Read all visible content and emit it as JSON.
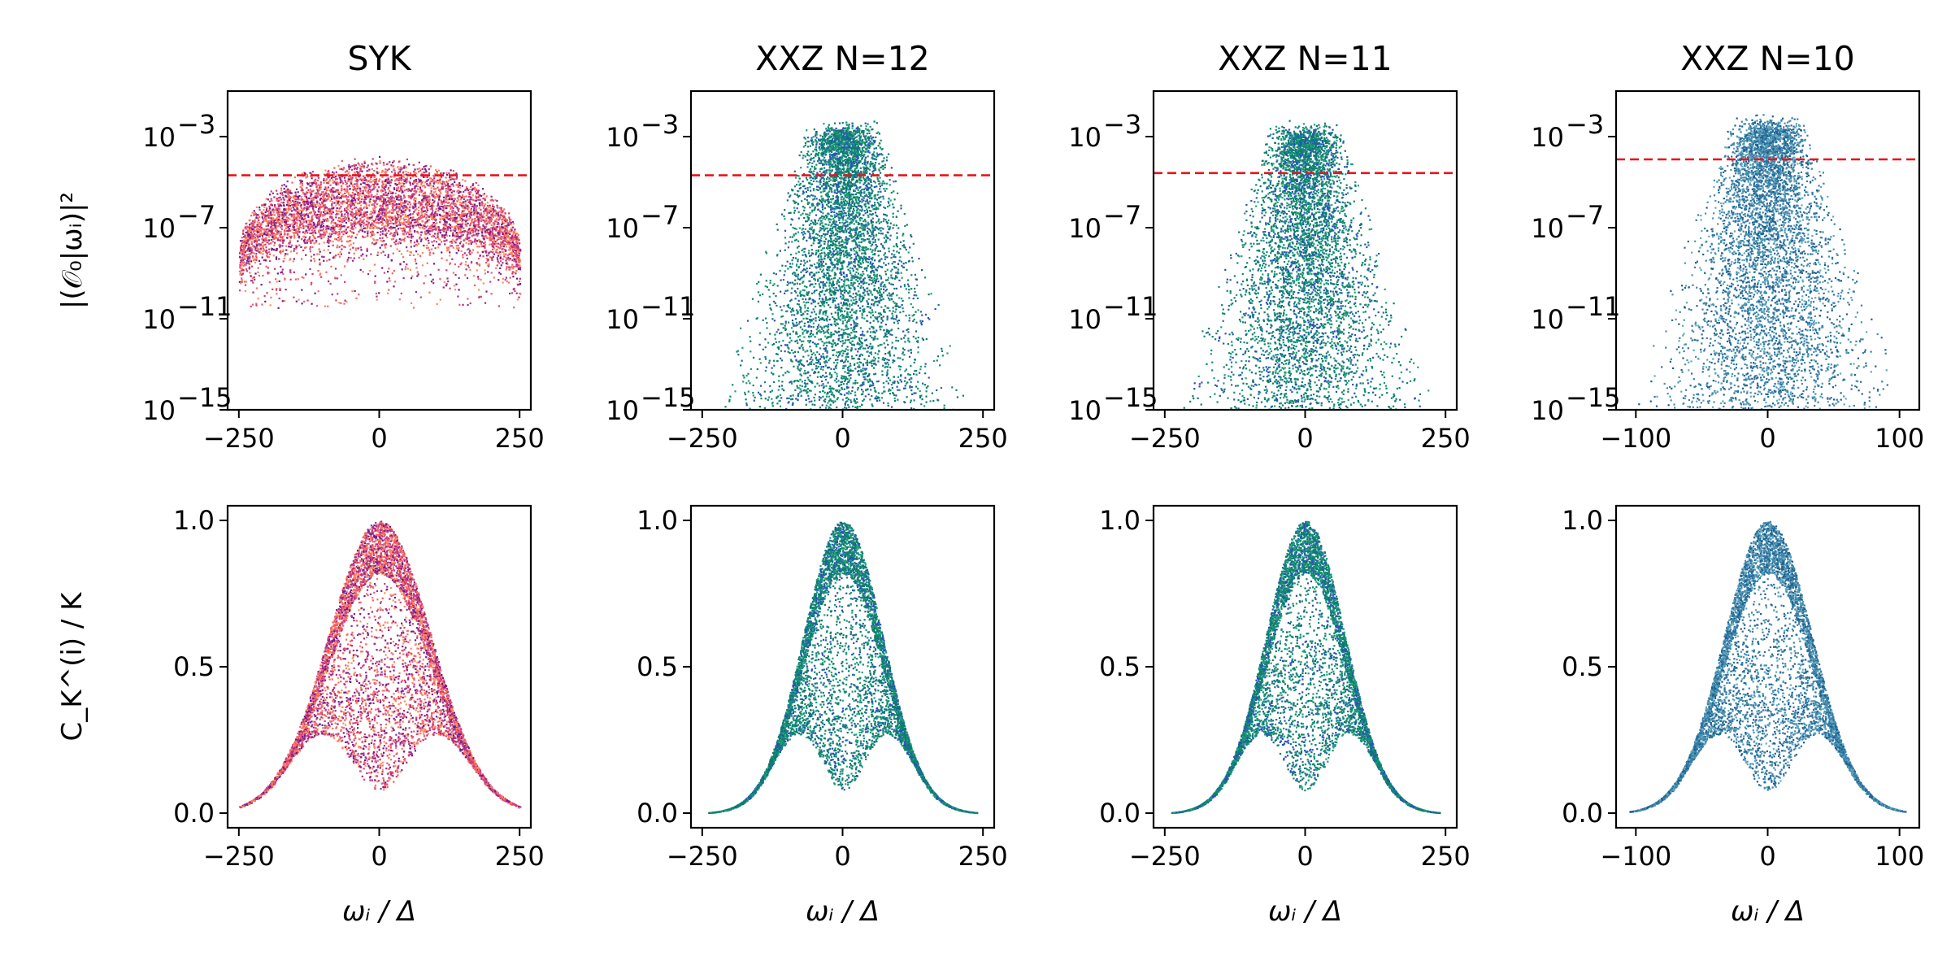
{
  "figure": {
    "background": "#ffffff",
    "colormap_names": [
      "magma-pink",
      "green-blue",
      "green-blue",
      "blue-teal"
    ]
  },
  "chart_data": [
    {
      "type": "scatter",
      "title": "SYK",
      "row": "top",
      "ylabel": "|(𝒪₀|ωᵢ)|²",
      "yscale": "log",
      "ylim_exp": [
        -15,
        -1
      ],
      "xlim": [
        -270,
        270
      ],
      "xticks": [
        -250,
        0,
        250
      ],
      "xtick_labels": [
        "−250",
        "0",
        "250"
      ],
      "ytick_exps": [
        -3,
        -7,
        -11,
        -15
      ],
      "ytick_labels": [
        "10",
        "10",
        "10",
        "10"
      ],
      "ytick_sups": [
        "−3",
        "−7",
        "−11",
        "−15"
      ],
      "reference_line": {
        "y_exp": -4.7,
        "color": "#e8141c",
        "style": "dashed"
      },
      "cloud": {
        "x_extent": [
          -250,
          250
        ],
        "y_top_exp": -3.8,
        "y_bottom_exp": -7.9,
        "tail_exp": -10.5,
        "shape": "dome"
      },
      "colors": [
        "#ff8c5a",
        "#ff7060",
        "#f25a6b",
        "#d43d78",
        "#a02c8a",
        "#6d1c8f"
      ]
    },
    {
      "type": "scatter",
      "title": "XXZ N=12",
      "row": "top",
      "ylabel": "",
      "yscale": "log",
      "ylim_exp": [
        -15,
        -1
      ],
      "xlim": [
        -270,
        270
      ],
      "xticks": [
        -250,
        0,
        250
      ],
      "xtick_labels": [
        "−250",
        "0",
        "250"
      ],
      "ytick_exps": [
        -3,
        -7,
        -11,
        -15
      ],
      "ytick_labels": [
        "10",
        "10",
        "10",
        "10"
      ],
      "ytick_sups": [
        "−3",
        "−7",
        "−11",
        "−15"
      ],
      "reference_line": {
        "y_exp": -4.7,
        "color": "#e8141c",
        "style": "dashed"
      },
      "cloud": {
        "x_extent": [
          -230,
          230
        ],
        "y_top_exp": -2.8,
        "y_bottom_exp": -15,
        "shape": "pyramid"
      },
      "colors": [
        "#0b7a6a",
        "#0f8a75",
        "#14806e",
        "#2a4fbf",
        "#1f9e7a"
      ]
    },
    {
      "type": "scatter",
      "title": "XXZ N=11",
      "row": "top",
      "ylabel": "",
      "yscale": "log",
      "ylim_exp": [
        -15,
        -1
      ],
      "xlim": [
        -270,
        270
      ],
      "xticks": [
        -250,
        0,
        250
      ],
      "xtick_labels": [
        "−250",
        "0",
        "250"
      ],
      "ytick_exps": [
        -3,
        -7,
        -11,
        -15
      ],
      "ytick_labels": [
        "10",
        "10",
        "10",
        "10"
      ],
      "ytick_sups": [
        "−3",
        "−7",
        "−11",
        "−15"
      ],
      "reference_line": {
        "y_exp": -4.6,
        "color": "#e8141c",
        "style": "dashed"
      },
      "cloud": {
        "x_extent": [
          -230,
          230
        ],
        "y_top_exp": -2.9,
        "y_bottom_exp": -15,
        "shape": "pyramid"
      },
      "colors": [
        "#0b7a6a",
        "#0f8a75",
        "#14806e",
        "#2a4fbf",
        "#1f9e7a"
      ]
    },
    {
      "type": "scatter",
      "title": "XXZ N=10",
      "row": "top",
      "ylabel": "",
      "yscale": "log",
      "ylim_exp": [
        -15,
        -1
      ],
      "xlim": [
        -115,
        115
      ],
      "xticks": [
        -100,
        0,
        100
      ],
      "xtick_labels": [
        "−100",
        "0",
        "100"
      ],
      "ytick_exps": [
        -3,
        -7,
        -11,
        -15
      ],
      "ytick_labels": [
        "10",
        "10",
        "10",
        "10"
      ],
      "ytick_sups": [
        "−3",
        "−7",
        "−11",
        "−15"
      ],
      "reference_line": {
        "y_exp": -4.0,
        "color": "#e8141c",
        "style": "dashed"
      },
      "cloud": {
        "x_extent": [
          -105,
          105
        ],
        "y_top_exp": -2.6,
        "y_bottom_exp": -15,
        "shape": "pyramid"
      },
      "colors": [
        "#3b7fa3",
        "#2c6fa0",
        "#4a92b0",
        "#1c5f8f",
        "#60a8bf"
      ]
    },
    {
      "type": "scatter",
      "title": "",
      "row": "bottom",
      "ylabel": "C_K^(i) / K",
      "xlabel": "ωᵢ / Δ",
      "yscale": "linear",
      "ylim": [
        -0.05,
        1.05
      ],
      "xlim": [
        -270,
        270
      ],
      "xticks": [
        -250,
        0,
        250
      ],
      "xtick_labels": [
        "−250",
        "0",
        "250"
      ],
      "yticks": [
        0.0,
        0.5,
        1.0
      ],
      "ytick_labels": [
        "0.0",
        "0.5",
        "1.0"
      ],
      "cloud": {
        "x_extent": [
          -250,
          250
        ],
        "center": 0,
        "width": 110,
        "shape": "bell"
      },
      "colors": [
        "#ff8c5a",
        "#ff7060",
        "#f25a6b",
        "#d43d78",
        "#a02c8a",
        "#6d1c8f"
      ]
    },
    {
      "type": "scatter",
      "title": "",
      "row": "bottom",
      "ylabel": "",
      "xlabel": "ωᵢ / Δ",
      "yscale": "linear",
      "ylim": [
        -0.05,
        1.05
      ],
      "xlim": [
        -270,
        270
      ],
      "xticks": [
        -250,
        0,
        250
      ],
      "xtick_labels": [
        "−250",
        "0",
        "250"
      ],
      "yticks": [
        0.0,
        0.5,
        1.0
      ],
      "ytick_labels": [
        "0.0",
        "0.5",
        "1.0"
      ],
      "cloud": {
        "x_extent": [
          -240,
          240
        ],
        "center": 0,
        "width": 85,
        "shape": "bell"
      },
      "colors": [
        "#0b7a6a",
        "#0f8a75",
        "#14806e",
        "#2a4fbf",
        "#1f9e7a"
      ]
    },
    {
      "type": "scatter",
      "title": "",
      "row": "bottom",
      "ylabel": "",
      "xlabel": "ωᵢ / Δ",
      "yscale": "linear",
      "ylim": [
        -0.05,
        1.05
      ],
      "xlim": [
        -270,
        270
      ],
      "xticks": [
        -250,
        0,
        250
      ],
      "xtick_labels": [
        "−250",
        "0",
        "250"
      ],
      "yticks": [
        0.0,
        0.5,
        1.0
      ],
      "ytick_labels": [
        "0.0",
        "0.5",
        "1.0"
      ],
      "cloud": {
        "x_extent": [
          -240,
          240
        ],
        "center": 0,
        "width": 85,
        "shape": "bell"
      },
      "colors": [
        "#0b7a6a",
        "#0f8a75",
        "#14806e",
        "#2a4fbf",
        "#1f9e7a"
      ]
    },
    {
      "type": "scatter",
      "title": "",
      "row": "bottom",
      "ylabel": "",
      "xlabel": "ωᵢ / Δ",
      "yscale": "linear",
      "ylim": [
        -0.05,
        1.05
      ],
      "xlim": [
        -115,
        115
      ],
      "xticks": [
        -100,
        0,
        100
      ],
      "xtick_labels": [
        "−100",
        "0",
        "100"
      ],
      "yticks": [
        0.0,
        0.5,
        1.0
      ],
      "ytick_labels": [
        "0.0",
        "0.5",
        "1.0"
      ],
      "cloud": {
        "x_extent": [
          -105,
          105
        ],
        "center": 0,
        "width": 40,
        "shape": "bell"
      },
      "colors": [
        "#3b7fa3",
        "#2c6fa0",
        "#4a92b0",
        "#1c5f8f",
        "#60a8bf"
      ]
    }
  ]
}
